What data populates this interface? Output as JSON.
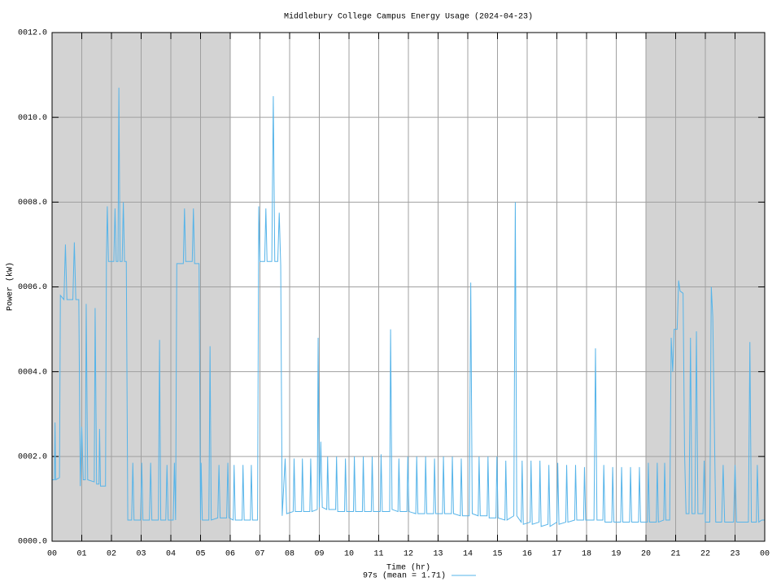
{
  "chart_data": {
    "type": "line",
    "title": "Middlebury College Campus Energy Usage (2024-04-23)",
    "x_label": "Time (hr)",
    "y_label": "Power (kW)",
    "xlim": [
      0,
      24
    ],
    "ylim": [
      0,
      12
    ],
    "xticks": [
      {
        "value": 0,
        "label": "00"
      },
      {
        "value": 1,
        "label": "01"
      },
      {
        "value": 2,
        "label": "02"
      },
      {
        "value": 3,
        "label": "03"
      },
      {
        "value": 4,
        "label": "04"
      },
      {
        "value": 5,
        "label": "05"
      },
      {
        "value": 6,
        "label": "06"
      },
      {
        "value": 7,
        "label": "07"
      },
      {
        "value": 8,
        "label": "08"
      },
      {
        "value": 9,
        "label": "09"
      },
      {
        "value": 10,
        "label": "10"
      },
      {
        "value": 11,
        "label": "11"
      },
      {
        "value": 12,
        "label": "12"
      },
      {
        "value": 13,
        "label": "13"
      },
      {
        "value": 14,
        "label": "14"
      },
      {
        "value": 15,
        "label": "15"
      },
      {
        "value": 16,
        "label": "16"
      },
      {
        "value": 17,
        "label": "17"
      },
      {
        "value": 18,
        "label": "18"
      },
      {
        "value": 19,
        "label": "19"
      },
      {
        "value": 20,
        "label": "20"
      },
      {
        "value": 21,
        "label": "21"
      },
      {
        "value": 22,
        "label": "22"
      },
      {
        "value": 23,
        "label": "23"
      },
      {
        "value": 24,
        "label": "00"
      }
    ],
    "yticks": [
      {
        "value": 0,
        "label": "0000.0"
      },
      {
        "value": 2,
        "label": "0002.0"
      },
      {
        "value": 4,
        "label": "0004.0"
      },
      {
        "value": 6,
        "label": "0006.0"
      },
      {
        "value": 8,
        "label": "0008.0"
      },
      {
        "value": 10,
        "label": "0010.0"
      },
      {
        "value": 12,
        "label": "0012.0"
      }
    ],
    "grid": true,
    "shaded_regions": [
      [
        0,
        6
      ],
      [
        20,
        24
      ]
    ],
    "shade_color": "#d3d3d3",
    "legend": "bottom",
    "x": [
      0,
      0.08,
      0.1,
      0.12,
      0.25,
      0.28,
      0.4,
      0.45,
      0.5,
      0.7,
      0.75,
      0.8,
      0.9,
      0.95,
      1.0,
      1.05,
      1.12,
      1.15,
      1.2,
      1.42,
      1.45,
      1.5,
      1.58,
      1.6,
      1.63,
      1.8,
      1.83,
      1.86,
      1.9,
      2.08,
      2.12,
      2.16,
      2.22,
      2.25,
      2.29,
      2.36,
      2.4,
      2.44,
      2.5,
      2.55,
      2.68,
      2.72,
      2.76,
      2.98,
      3.02,
      3.06,
      3.28,
      3.32,
      3.36,
      3.58,
      3.62,
      3.66,
      3.83,
      3.87,
      3.91,
      4.08,
      4.12,
      4.16,
      4.2,
      4.42,
      4.46,
      4.5,
      4.72,
      4.76,
      4.8,
      4.95,
      5.0,
      5.02,
      5.06,
      5.28,
      5.32,
      5.36,
      5.58,
      5.62,
      5.66,
      5.88,
      5.92,
      5.96,
      6.1,
      6.13,
      6.17,
      6.4,
      6.43,
      6.47,
      6.68,
      6.71,
      6.75,
      6.92,
      6.96,
      7.0,
      7.16,
      7.2,
      7.24,
      7.4,
      7.45,
      7.5,
      7.6,
      7.65,
      7.7,
      7.75,
      7.85,
      7.9,
      8.12,
      8.15,
      8.19,
      8.4,
      8.43,
      8.47,
      8.68,
      8.71,
      8.75,
      8.93,
      8.96,
      9.0,
      9.05,
      9.1,
      9.25,
      9.28,
      9.32,
      9.55,
      9.58,
      9.62,
      9.85,
      9.88,
      9.92,
      10.15,
      10.18,
      10.22,
      10.45,
      10.48,
      10.52,
      10.75,
      10.78,
      10.82,
      11.05,
      11.08,
      11.12,
      11.37,
      11.4,
      11.45,
      11.65,
      11.68,
      11.72,
      11.95,
      11.98,
      12.02,
      12.25,
      12.28,
      12.32,
      12.55,
      12.58,
      12.62,
      12.85,
      12.88,
      12.92,
      13.15,
      13.18,
      13.22,
      13.45,
      13.48,
      13.52,
      13.75,
      13.78,
      13.82,
      14.05,
      14.1,
      14.15,
      14.35,
      14.38,
      14.42,
      14.65,
      14.68,
      14.72,
      14.95,
      14.98,
      15.02,
      15.25,
      15.28,
      15.32,
      15.55,
      15.6,
      15.65,
      15.8,
      15.83,
      15.87,
      16.1,
      16.13,
      16.17,
      16.4,
      16.43,
      16.47,
      16.7,
      16.73,
      16.77,
      17.0,
      17.03,
      17.07,
      17.3,
      17.33,
      17.37,
      17.6,
      17.63,
      17.67,
      17.9,
      17.93,
      17.97,
      18.25,
      18.3,
      18.35,
      18.55,
      18.58,
      18.62,
      18.85,
      18.88,
      18.92,
      19.15,
      19.18,
      19.22,
      19.45,
      19.48,
      19.52,
      19.75,
      19.78,
      19.82,
      20.05,
      20.08,
      20.12,
      20.35,
      20.38,
      20.42,
      20.6,
      20.63,
      20.67,
      20.8,
      20.85,
      20.9,
      20.95,
      21.05,
      21.1,
      21.15,
      21.25,
      21.3,
      21.35,
      21.45,
      21.5,
      21.55,
      21.65,
      21.7,
      21.75,
      21.92,
      21.96,
      22.0,
      22.15,
      22.2,
      22.25,
      22.35,
      22.55,
      22.6,
      22.65,
      22.95,
      23.0,
      23.05,
      23.45,
      23.5,
      23.55,
      23.72,
      23.75,
      23.8,
      23.9,
      24
    ],
    "series": [
      {
        "name": "97s (mean = 1.71)",
        "color": "#56b4e9",
        "values": [
          1.45,
          1.45,
          2.8,
          1.45,
          1.5,
          5.8,
          5.7,
          7.0,
          5.7,
          5.7,
          7.05,
          5.7,
          5.7,
          1.3,
          2.7,
          1.45,
          1.45,
          5.6,
          1.45,
          1.4,
          5.5,
          1.35,
          1.35,
          2.65,
          1.3,
          1.3,
          6.6,
          7.9,
          6.6,
          6.6,
          7.85,
          6.6,
          6.6,
          10.7,
          6.6,
          6.6,
          8.0,
          6.6,
          6.6,
          0.5,
          0.5,
          1.85,
          0.5,
          0.5,
          1.85,
          0.5,
          0.5,
          1.85,
          0.5,
          0.5,
          4.75,
          0.5,
          0.5,
          1.8,
          0.5,
          0.5,
          1.85,
          0.5,
          6.55,
          6.55,
          7.85,
          6.6,
          6.6,
          7.85,
          6.55,
          6.55,
          0.5,
          1.85,
          0.5,
          0.5,
          4.6,
          0.5,
          0.55,
          1.8,
          0.55,
          0.55,
          1.85,
          0.55,
          0.5,
          1.8,
          0.5,
          0.5,
          1.8,
          0.5,
          0.5,
          1.8,
          0.5,
          0.5,
          7.9,
          6.6,
          6.6,
          7.85,
          6.6,
          6.6,
          10.5,
          6.6,
          6.6,
          7.75,
          6.5,
          0.6,
          1.95,
          0.65,
          0.7,
          1.95,
          0.7,
          0.7,
          1.95,
          0.7,
          0.7,
          1.95,
          0.7,
          0.75,
          4.8,
          0.8,
          2.35,
          0.8,
          0.75,
          2.0,
          0.75,
          0.75,
          2.0,
          0.7,
          0.7,
          1.95,
          0.7,
          0.7,
          2.0,
          0.7,
          0.7,
          2.0,
          0.7,
          0.7,
          2.0,
          0.7,
          0.7,
          2.05,
          0.7,
          0.7,
          5.0,
          0.75,
          0.7,
          1.95,
          0.7,
          0.7,
          2.0,
          0.7,
          0.65,
          2.0,
          0.65,
          0.65,
          2.0,
          0.65,
          0.65,
          1.95,
          0.65,
          0.65,
          2.0,
          0.65,
          0.65,
          2.0,
          0.65,
          0.6,
          1.95,
          0.6,
          0.6,
          6.1,
          0.65,
          0.6,
          2.0,
          0.6,
          0.6,
          2.0,
          0.55,
          0.55,
          2.0,
          0.55,
          0.5,
          1.9,
          0.5,
          0.6,
          8.0,
          0.6,
          0.45,
          1.9,
          0.4,
          0.45,
          1.9,
          0.4,
          0.45,
          1.9,
          0.35,
          0.4,
          1.8,
          0.35,
          0.45,
          1.85,
          0.4,
          0.45,
          1.8,
          0.45,
          0.5,
          1.8,
          0.5,
          0.5,
          1.75,
          0.5,
          0.5,
          4.55,
          0.5,
          0.5,
          1.8,
          0.45,
          0.45,
          1.75,
          0.45,
          0.45,
          1.75,
          0.45,
          0.45,
          1.75,
          0.45,
          0.45,
          1.75,
          0.45,
          0.45,
          1.85,
          0.45,
          0.45,
          1.85,
          0.45,
          0.5,
          1.85,
          0.5,
          0.5,
          4.8,
          4.0,
          5.0,
          5.0,
          6.15,
          5.9,
          5.85,
          2.1,
          0.65,
          0.65,
          4.8,
          0.65,
          0.65,
          4.95,
          0.65,
          0.65,
          1.9,
          0.45,
          0.45,
          6.0,
          5.3,
          0.45,
          0.45,
          1.8,
          0.45,
          0.45,
          1.8,
          0.45,
          0.45,
          4.7,
          0.45,
          0.45,
          1.8,
          0.45,
          0.5,
          0.5
        ]
      }
    ]
  }
}
